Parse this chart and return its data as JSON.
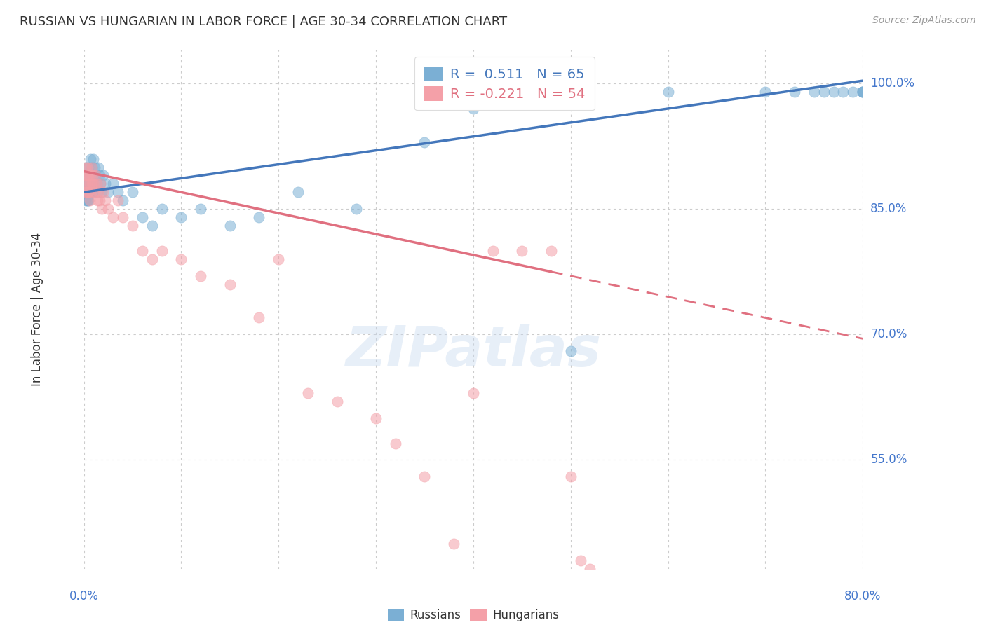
{
  "title": "RUSSIAN VS HUNGARIAN IN LABOR FORCE | AGE 30-34 CORRELATION CHART",
  "source": "Source: ZipAtlas.com",
  "ylabel": "In Labor Force | Age 30-34",
  "xlim": [
    0.0,
    0.8
  ],
  "ylim": [
    0.42,
    1.04
  ],
  "ytick_positions": [
    0.55,
    0.7,
    0.85,
    1.0
  ],
  "ytick_labels": [
    "55.0%",
    "70.0%",
    "85.0%",
    "100.0%"
  ],
  "russian_R": 0.511,
  "russian_N": 65,
  "hungarian_R": -0.221,
  "hungarian_N": 54,
  "blue_color": "#7BAFD4",
  "pink_color": "#F4A0A8",
  "line_blue": "#4477BB",
  "line_pink": "#E07080",
  "watermark": "ZIPatlas",
  "background_color": "#FFFFFF",
  "grid_color": "#CCCCCC",
  "russian_x": [
    0.001,
    0.001,
    0.002,
    0.002,
    0.002,
    0.003,
    0.003,
    0.003,
    0.004,
    0.004,
    0.004,
    0.005,
    0.005,
    0.005,
    0.006,
    0.006,
    0.007,
    0.007,
    0.007,
    0.008,
    0.008,
    0.009,
    0.009,
    0.01,
    0.01,
    0.011,
    0.012,
    0.013,
    0.014,
    0.015,
    0.016,
    0.017,
    0.018,
    0.02,
    0.022,
    0.025,
    0.03,
    0.035,
    0.04,
    0.05,
    0.06,
    0.07,
    0.08,
    0.1,
    0.12,
    0.15,
    0.18,
    0.22,
    0.28,
    0.35,
    0.4,
    0.45,
    0.5,
    0.6,
    0.7,
    0.73,
    0.75,
    0.76,
    0.77,
    0.78,
    0.79,
    0.8,
    0.8,
    0.8,
    0.8
  ],
  "russian_y": [
    0.88,
    0.87,
    0.9,
    0.88,
    0.86,
    0.89,
    0.87,
    0.86,
    0.88,
    0.87,
    0.86,
    0.9,
    0.88,
    0.86,
    0.89,
    0.87,
    0.91,
    0.89,
    0.87,
    0.9,
    0.88,
    0.89,
    0.87,
    0.91,
    0.88,
    0.9,
    0.89,
    0.88,
    0.87,
    0.9,
    0.89,
    0.88,
    0.87,
    0.89,
    0.88,
    0.87,
    0.88,
    0.87,
    0.86,
    0.87,
    0.84,
    0.83,
    0.85,
    0.84,
    0.85,
    0.83,
    0.84,
    0.87,
    0.85,
    0.93,
    0.97,
    0.99,
    0.68,
    0.99,
    0.99,
    0.99,
    0.99,
    0.99,
    0.99,
    0.99,
    0.99,
    0.99,
    0.99,
    0.99,
    0.99
  ],
  "hungarian_x": [
    0.001,
    0.001,
    0.002,
    0.002,
    0.003,
    0.003,
    0.004,
    0.004,
    0.005,
    0.005,
    0.006,
    0.006,
    0.007,
    0.007,
    0.008,
    0.008,
    0.009,
    0.01,
    0.011,
    0.012,
    0.013,
    0.014,
    0.015,
    0.016,
    0.017,
    0.018,
    0.02,
    0.022,
    0.025,
    0.03,
    0.035,
    0.04,
    0.05,
    0.06,
    0.07,
    0.08,
    0.1,
    0.12,
    0.15,
    0.18,
    0.2,
    0.23,
    0.26,
    0.3,
    0.32,
    0.35,
    0.38,
    0.4,
    0.42,
    0.45,
    0.48,
    0.5,
    0.51,
    0.52
  ],
  "hungarian_y": [
    0.89,
    0.87,
    0.9,
    0.88,
    0.89,
    0.87,
    0.9,
    0.88,
    0.89,
    0.87,
    0.88,
    0.86,
    0.89,
    0.87,
    0.9,
    0.88,
    0.89,
    0.88,
    0.87,
    0.89,
    0.88,
    0.86,
    0.87,
    0.86,
    0.88,
    0.85,
    0.87,
    0.86,
    0.85,
    0.84,
    0.86,
    0.84,
    0.83,
    0.8,
    0.79,
    0.8,
    0.79,
    0.77,
    0.76,
    0.72,
    0.79,
    0.63,
    0.62,
    0.6,
    0.57,
    0.53,
    0.45,
    0.63,
    0.8,
    0.8,
    0.8,
    0.53,
    0.43,
    0.42
  ]
}
